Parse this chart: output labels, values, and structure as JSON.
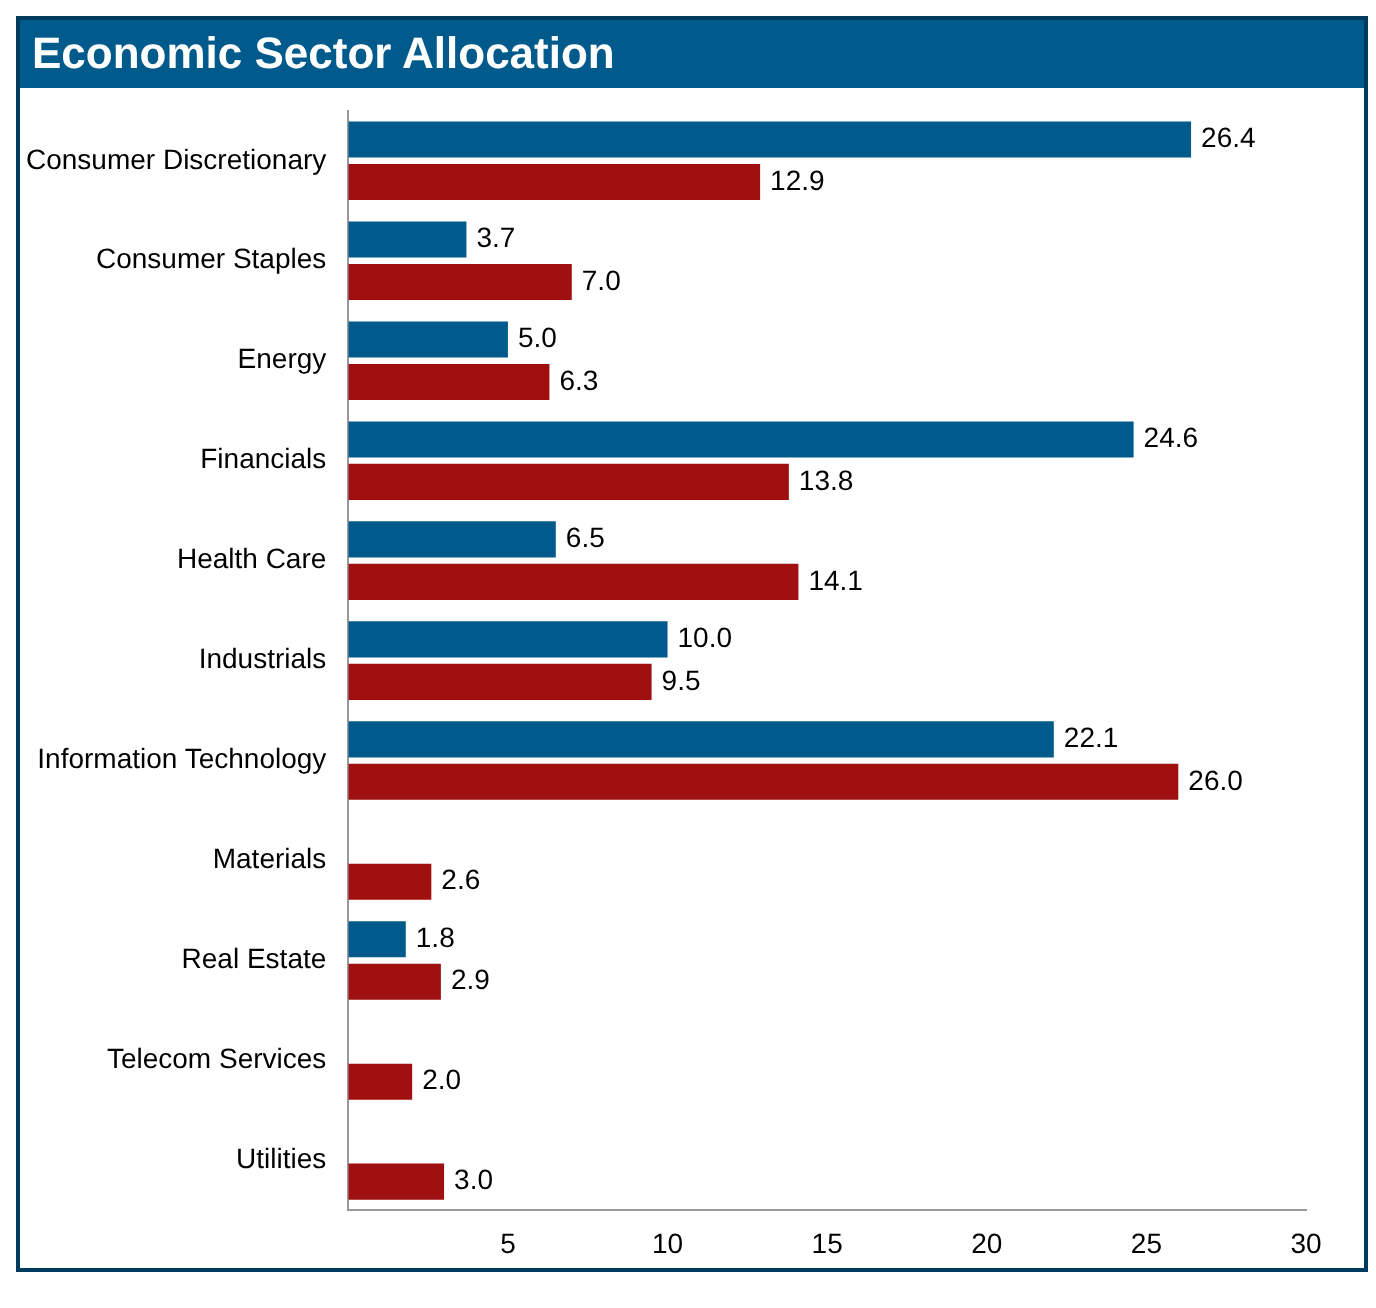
{
  "chart_data": {
    "type": "bar",
    "title": "Economic Sector Allocation",
    "orientation": "horizontal",
    "categories": [
      "Consumer Discretionary",
      "Consumer Staples",
      "Energy",
      "Financials",
      "Health Care",
      "Industrials",
      "Information Technology",
      "Materials",
      "Real Estate",
      "Telecom Services",
      "Utilities"
    ],
    "series": [
      {
        "color": "#005a8c",
        "values": [
          26.4,
          3.7,
          5.0,
          24.6,
          6.5,
          10.0,
          22.1,
          null,
          1.8,
          null,
          null
        ],
        "value_labels": [
          "26.4",
          "3.7",
          "5.0",
          "24.6",
          "6.5",
          "10.0",
          "22.1",
          null,
          "1.8",
          null,
          null
        ]
      },
      {
        "color": "#a01010",
        "values": [
          12.9,
          7.0,
          6.3,
          13.8,
          14.1,
          9.5,
          26.0,
          2.6,
          2.9,
          2.0,
          3.0
        ],
        "value_labels": [
          "12.9",
          "7.0",
          "6.3",
          "13.8",
          "14.1",
          "9.5",
          "26.0",
          "2.6",
          "2.9",
          "2.0",
          "3.0"
        ]
      }
    ],
    "xlim": [
      0,
      30
    ],
    "xticks": [
      5,
      10,
      15,
      20,
      25,
      30
    ],
    "grid": false,
    "legend": false
  }
}
